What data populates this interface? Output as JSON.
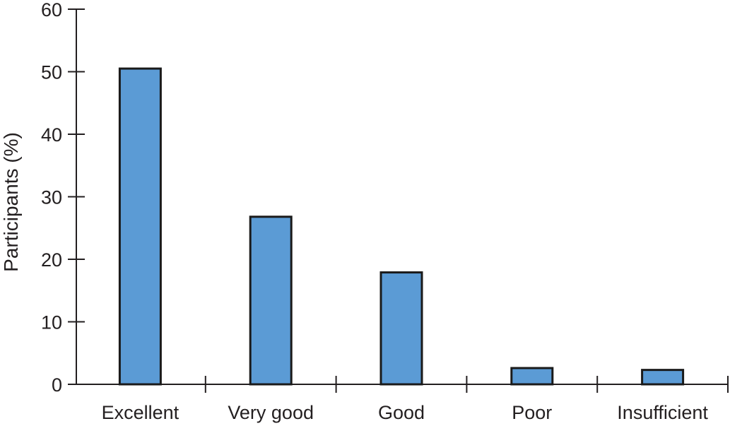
{
  "chart_data": {
    "type": "bar",
    "categories": [
      "Excellent",
      "Very good",
      "Good",
      "Poor",
      "Insufficient"
    ],
    "values": [
      50.5,
      26.8,
      17.9,
      2.6,
      2.3
    ],
    "title": "",
    "xlabel": "",
    "ylabel": "Participants (%)",
    "ylim": [
      0,
      60
    ],
    "yticks": [
      0,
      10,
      20,
      30,
      40,
      50,
      60
    ],
    "bar_color": "#5b9bd5",
    "grid": false,
    "legend": "none"
  }
}
